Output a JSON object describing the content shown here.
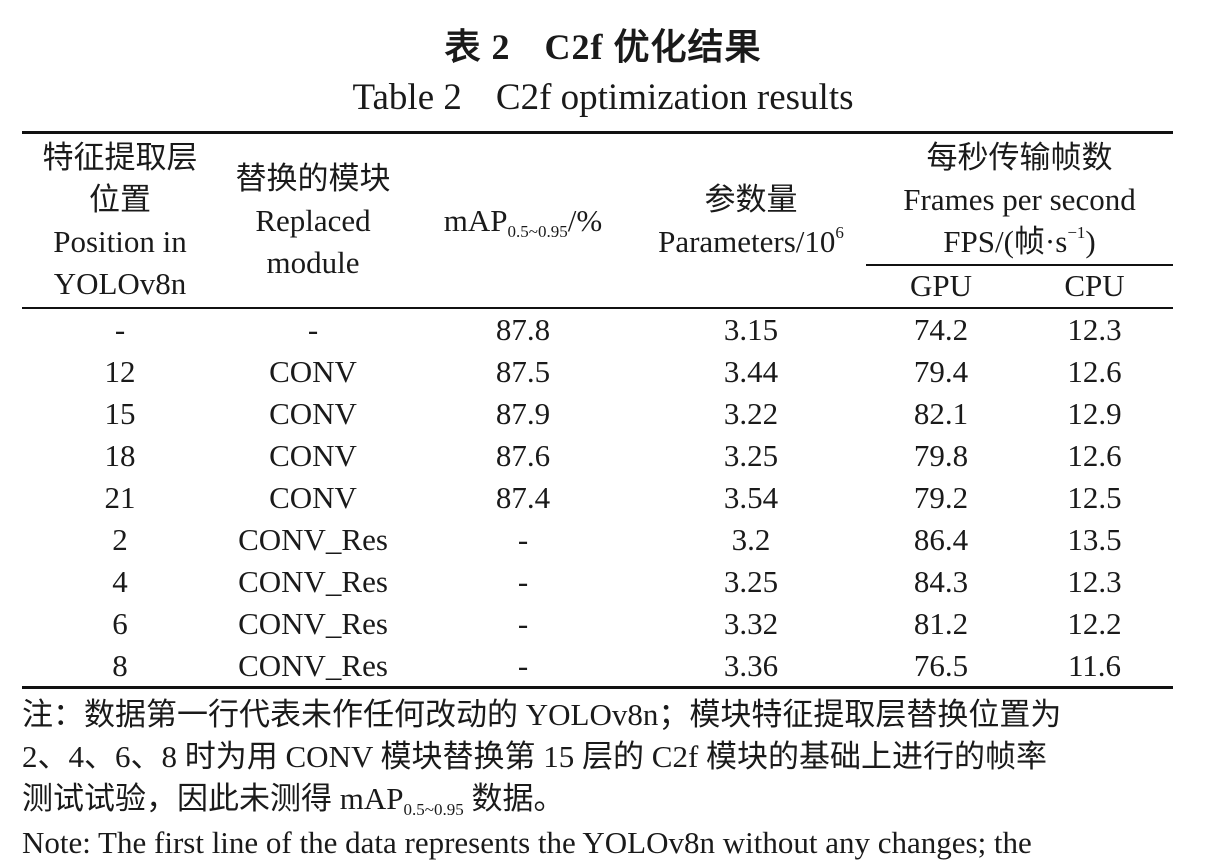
{
  "caption": {
    "cn_label": "表 2",
    "cn_title": "C2f 优化结果",
    "en_label": "Table 2",
    "en_title": "C2f optimization results"
  },
  "header": {
    "position": {
      "cn_line1": "特征提取层",
      "cn_line2": "位置",
      "en_line1": "Position in",
      "en_line2": "YOLOv8n"
    },
    "module": {
      "cn": "替换的模块",
      "en_line1": "Replaced",
      "en_line2": "module"
    },
    "map": {
      "prefix": "mAP",
      "sub": "0.5~0.95",
      "suffix": "/%"
    },
    "params": {
      "cn": "参数量",
      "en": "Parameters/10",
      "sup": "6"
    },
    "fps": {
      "cn": "每秒传输帧数",
      "en": "Frames per second",
      "unit_prefix": "FPS/(帧·s",
      "unit_sup": "−1",
      "unit_suffix": ")",
      "gpu": "GPU",
      "cpu": "CPU"
    }
  },
  "rows": [
    {
      "position": "-",
      "module": "-",
      "map": "87.8",
      "params": "3.15",
      "gpu": "74.2",
      "cpu": "12.3"
    },
    {
      "position": "12",
      "module": "CONV",
      "map": "87.5",
      "params": "3.44",
      "gpu": "79.4",
      "cpu": "12.6"
    },
    {
      "position": "15",
      "module": "CONV",
      "map": "87.9",
      "params": "3.22",
      "gpu": "82.1",
      "cpu": "12.9"
    },
    {
      "position": "18",
      "module": "CONV",
      "map": "87.6",
      "params": "3.25",
      "gpu": "79.8",
      "cpu": "12.6"
    },
    {
      "position": "21",
      "module": "CONV",
      "map": "87.4",
      "params": "3.54",
      "gpu": "79.2",
      "cpu": "12.5"
    },
    {
      "position": "2",
      "module": "CONV_Res",
      "map": "-",
      "params": "3.2",
      "gpu": "86.4",
      "cpu": "13.5"
    },
    {
      "position": "4",
      "module": "CONV_Res",
      "map": "-",
      "params": "3.25",
      "gpu": "84.3",
      "cpu": "12.3"
    },
    {
      "position": "6",
      "module": "CONV_Res",
      "map": "-",
      "params": "3.32",
      "gpu": "81.2",
      "cpu": "12.2"
    },
    {
      "position": "8",
      "module": "CONV_Res",
      "map": "-",
      "params": "3.36",
      "gpu": "76.5",
      "cpu": "11.6"
    }
  ],
  "notes": {
    "cn_line1": "注：数据第一行代表未作任何改动的 YOLOv8n；模块特征提取层替换位置为",
    "cn_line2": "2、4、6、8 时为用 CONV 模块替换第 15 层的 C2f 模块的基础上进行的帧率",
    "cn_line3_prefix": "测试试验，因此未测得 mAP",
    "cn_line3_sub": "0.5~0.95",
    "cn_line3_suffix": " 数据。",
    "en_line1": "Note: The first line of the data represents the YOLOv8n without any changes; the"
  }
}
